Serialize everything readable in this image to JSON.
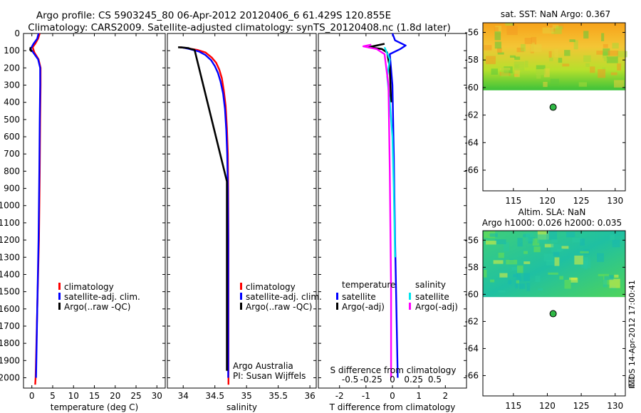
{
  "title": {
    "line1": "Argo profile: CS 5903245_80 06-Apr-2012 20120406_6 61.429S 120.855E",
    "line2": "Climatology: CARS2009. Satellite-adjusted climatology: synTS_20120408.nc (1.8d later)"
  },
  "colors": {
    "climatology": "#ff0000",
    "satellite": "#0000ff",
    "argo": "#000000",
    "sal_satellite": "#00e5ee",
    "sal_argo": "#ff00ff"
  },
  "chart_data": [
    {
      "type": "line",
      "name": "temperature",
      "xlabel": "temperature (deg C)",
      "xlim": [
        -2,
        32
      ],
      "ylim": [
        0,
        2060
      ],
      "xticks": [
        "0",
        "5",
        "10",
        "15",
        "20",
        "25",
        "30"
      ],
      "xtick_values": [
        0,
        5,
        10,
        15,
        20,
        25,
        30
      ],
      "yticks": [
        "0",
        "100",
        "200",
        "300",
        "400",
        "500",
        "600",
        "700",
        "800",
        "900",
        "1000",
        "1100",
        "1200",
        "1300",
        "1400",
        "1500",
        "1600",
        "1700",
        "1800",
        "1900",
        "2000"
      ],
      "ytick_values": [
        0,
        100,
        200,
        300,
        400,
        500,
        600,
        700,
        800,
        900,
        1000,
        1100,
        1200,
        1300,
        1400,
        1500,
        1600,
        1700,
        1800,
        1900,
        2000
      ],
      "legend": [
        "climatology",
        "satellite-adj. clim.",
        "Argo(..raw -QC)"
      ],
      "series": [
        {
          "name": "climatology",
          "color_key": "climatology",
          "points": [
            [
              1.9,
              0
            ],
            [
              1.5,
              30
            ],
            [
              0.8,
              60
            ],
            [
              0.2,
              80
            ],
            [
              0.6,
              110
            ],
            [
              1.6,
              150
            ],
            [
              2.1,
              200
            ],
            [
              2.1,
              300
            ],
            [
              2.0,
              500
            ],
            [
              1.9,
              800
            ],
            [
              1.7,
              1200
            ],
            [
              1.3,
              1600
            ],
            [
              0.9,
              2000
            ],
            [
              0.8,
              2040
            ]
          ]
        },
        {
          "name": "satellite-adj. clim.",
          "color_key": "satellite",
          "points": [
            [
              1.6,
              0
            ],
            [
              1.3,
              30
            ],
            [
              0.4,
              60
            ],
            [
              -0.3,
              90
            ],
            [
              0.3,
              110
            ],
            [
              1.5,
              150
            ],
            [
              2.0,
              200
            ],
            [
              2.0,
              300
            ],
            [
              1.9,
              500
            ],
            [
              1.8,
              800
            ],
            [
              1.6,
              1200
            ],
            [
              1.3,
              1600
            ],
            [
              1.0,
              2000
            ]
          ]
        },
        {
          "name": "Argo(..raw -QC)",
          "color_key": "argo",
          "points": [
            [
              -0.3,
              80
            ],
            [
              -0.4,
              95
            ],
            [
              0.0,
              105
            ]
          ]
        }
      ]
    },
    {
      "type": "line",
      "name": "salinity",
      "xlabel": "salinity",
      "xlim": [
        33.75,
        36.1
      ],
      "ylim": [
        0,
        2060
      ],
      "xticks": [
        "34",
        "34.5",
        "35",
        "35.5",
        "36"
      ],
      "xtick_values": [
        34,
        34.5,
        35,
        35.5,
        36
      ],
      "legend": [
        "climatology",
        "satellite-adj. clim.",
        "Argo(..raw -QC)"
      ],
      "annotation": [
        "Argo Australia",
        "PI: Susan Wijffels"
      ],
      "series": [
        {
          "name": "climatology",
          "color_key": "climatology",
          "points": [
            [
              33.95,
              80
            ],
            [
              34.05,
              85
            ],
            [
              34.22,
              95
            ],
            [
              34.35,
              110
            ],
            [
              34.45,
              140
            ],
            [
              34.52,
              170
            ],
            [
              34.57,
              210
            ],
            [
              34.61,
              260
            ],
            [
              34.64,
              330
            ],
            [
              34.67,
              420
            ],
            [
              34.69,
              550
            ],
            [
              34.705,
              700
            ],
            [
              34.71,
              900
            ],
            [
              34.715,
              1200
            ],
            [
              34.715,
              1600
            ],
            [
              34.715,
              2040
            ]
          ]
        },
        {
          "name": "satellite-adj. clim.",
          "color_key": "satellite",
          "points": [
            [
              33.97,
              80
            ],
            [
              34.1,
              90
            ],
            [
              34.25,
              105
            ],
            [
              34.35,
              125
            ],
            [
              34.44,
              155
            ],
            [
              34.5,
              190
            ],
            [
              34.55,
              230
            ],
            [
              34.59,
              280
            ],
            [
              34.63,
              350
            ],
            [
              34.66,
              440
            ],
            [
              34.68,
              560
            ],
            [
              34.695,
              700
            ],
            [
              34.705,
              900
            ],
            [
              34.71,
              1200
            ],
            [
              34.71,
              1600
            ],
            [
              34.71,
              2000
            ]
          ]
        },
        {
          "name": "Argo(..raw -QC)",
          "color_key": "argo",
          "points": [
            [
              33.92,
              80
            ],
            [
              34.0,
              82
            ],
            [
              34.08,
              85
            ],
            [
              34.12,
              90
            ],
            [
              34.18,
              95
            ],
            [
              34.69,
              860
            ],
            [
              34.69,
              1960
            ]
          ]
        }
      ]
    },
    {
      "type": "line",
      "name": "difference",
      "xlabel": "T difference from climatology",
      "xlabel_top": "S difference from climatology",
      "xlim": [
        -2.8,
        2.8
      ],
      "ylim": [
        0,
        2060
      ],
      "xticks": [
        "-2",
        "-1",
        "0",
        "1",
        "2"
      ],
      "xtick_values": [
        -2,
        -1,
        0,
        1,
        2
      ],
      "sticks": [
        "-0.5",
        "-0.25",
        "0",
        "0.25",
        "0.5"
      ],
      "stick_values": [
        -1.6,
        -0.8,
        0,
        0.8,
        1.6
      ],
      "legend_left_title": "temperature",
      "legend_right_title": "salinity",
      "legend_left": [
        "satellite",
        "Argo(-adj)"
      ],
      "legend_right": [
        "satellite",
        "Argo(-adj)"
      ],
      "series": [
        {
          "name": "T satellite",
          "color_key": "satellite",
          "points": [
            [
              0.0,
              0
            ],
            [
              0.1,
              40
            ],
            [
              0.5,
              70
            ],
            [
              0.3,
              90
            ],
            [
              -0.1,
              120
            ],
            [
              0.0,
              300
            ],
            [
              0.05,
              700
            ],
            [
              0.1,
              1200
            ],
            [
              0.15,
              1600
            ],
            [
              0.2,
              2000
            ]
          ]
        },
        {
          "name": "T Argo(-adj)",
          "color_key": "argo",
          "points": [
            [
              -0.3,
              60
            ],
            [
              -0.9,
              80
            ],
            [
              -0.4,
              90
            ],
            [
              -0.2,
              110
            ],
            [
              -0.1,
              200
            ],
            [
              -0.05,
              400
            ]
          ]
        },
        {
          "name": "S satellite",
          "color_key": "sal_satellite",
          "points": [
            [
              -0.3,
              80
            ],
            [
              -0.1,
              150
            ],
            [
              -0.2,
              250
            ],
            [
              -0.1,
              400
            ],
            [
              0.0,
              600
            ],
            [
              0.05,
              900
            ],
            [
              0.1,
              1300
            ]
          ]
        },
        {
          "name": "S Argo(-adj)",
          "color_key": "sal_argo",
          "points": [
            [
              -0.8,
              65
            ],
            [
              -1.1,
              75
            ],
            [
              -0.6,
              90
            ],
            [
              -0.3,
              120
            ],
            [
              -0.15,
              300
            ],
            [
              -0.1,
              800
            ],
            [
              -0.05,
              1500
            ],
            [
              -0.05,
              2000
            ]
          ]
        }
      ]
    }
  ],
  "maps": [
    {
      "name": "sat-sst",
      "title": "sat. SST: NaN Argo: 0.367",
      "yticks": [
        "-56",
        "-58",
        "-60",
        "-62",
        "-64",
        "-66"
      ],
      "ytick_values": [
        -56,
        -58,
        -60,
        -62,
        -64,
        -66
      ],
      "xticks": [
        "115",
        "120",
        "125",
        "130"
      ],
      "xtick_values": [
        115,
        120,
        125,
        130
      ],
      "lon_range": [
        110.5,
        131.5
      ],
      "lat_range": [
        -55.3,
        -67.5
      ],
      "field_lat_edge": -60.2,
      "argo_position": [
        120.855,
        -61.429
      ]
    },
    {
      "name": "altim-sla",
      "title_line1": "Altim. SLA: NaN",
      "title_line2": "Argo h1000: 0.026 h2000: 0.035",
      "yticks": [
        "-56",
        "-58",
        "-60",
        "-62",
        "-64",
        "-66"
      ],
      "ytick_values": [
        -56,
        -58,
        -60,
        -62,
        -64,
        -66
      ],
      "xticks": [
        "115",
        "120",
        "125",
        "130"
      ],
      "xtick_values": [
        115,
        120,
        125,
        130
      ],
      "lon_range": [
        110.5,
        131.5
      ],
      "lat_range": [
        -55.3,
        -67.5
      ],
      "field_lat_edge": -60.2,
      "argo_position": [
        120.855,
        -61.429
      ]
    }
  ],
  "footer": "IMOS 14-Apr-2012 17:00:41"
}
